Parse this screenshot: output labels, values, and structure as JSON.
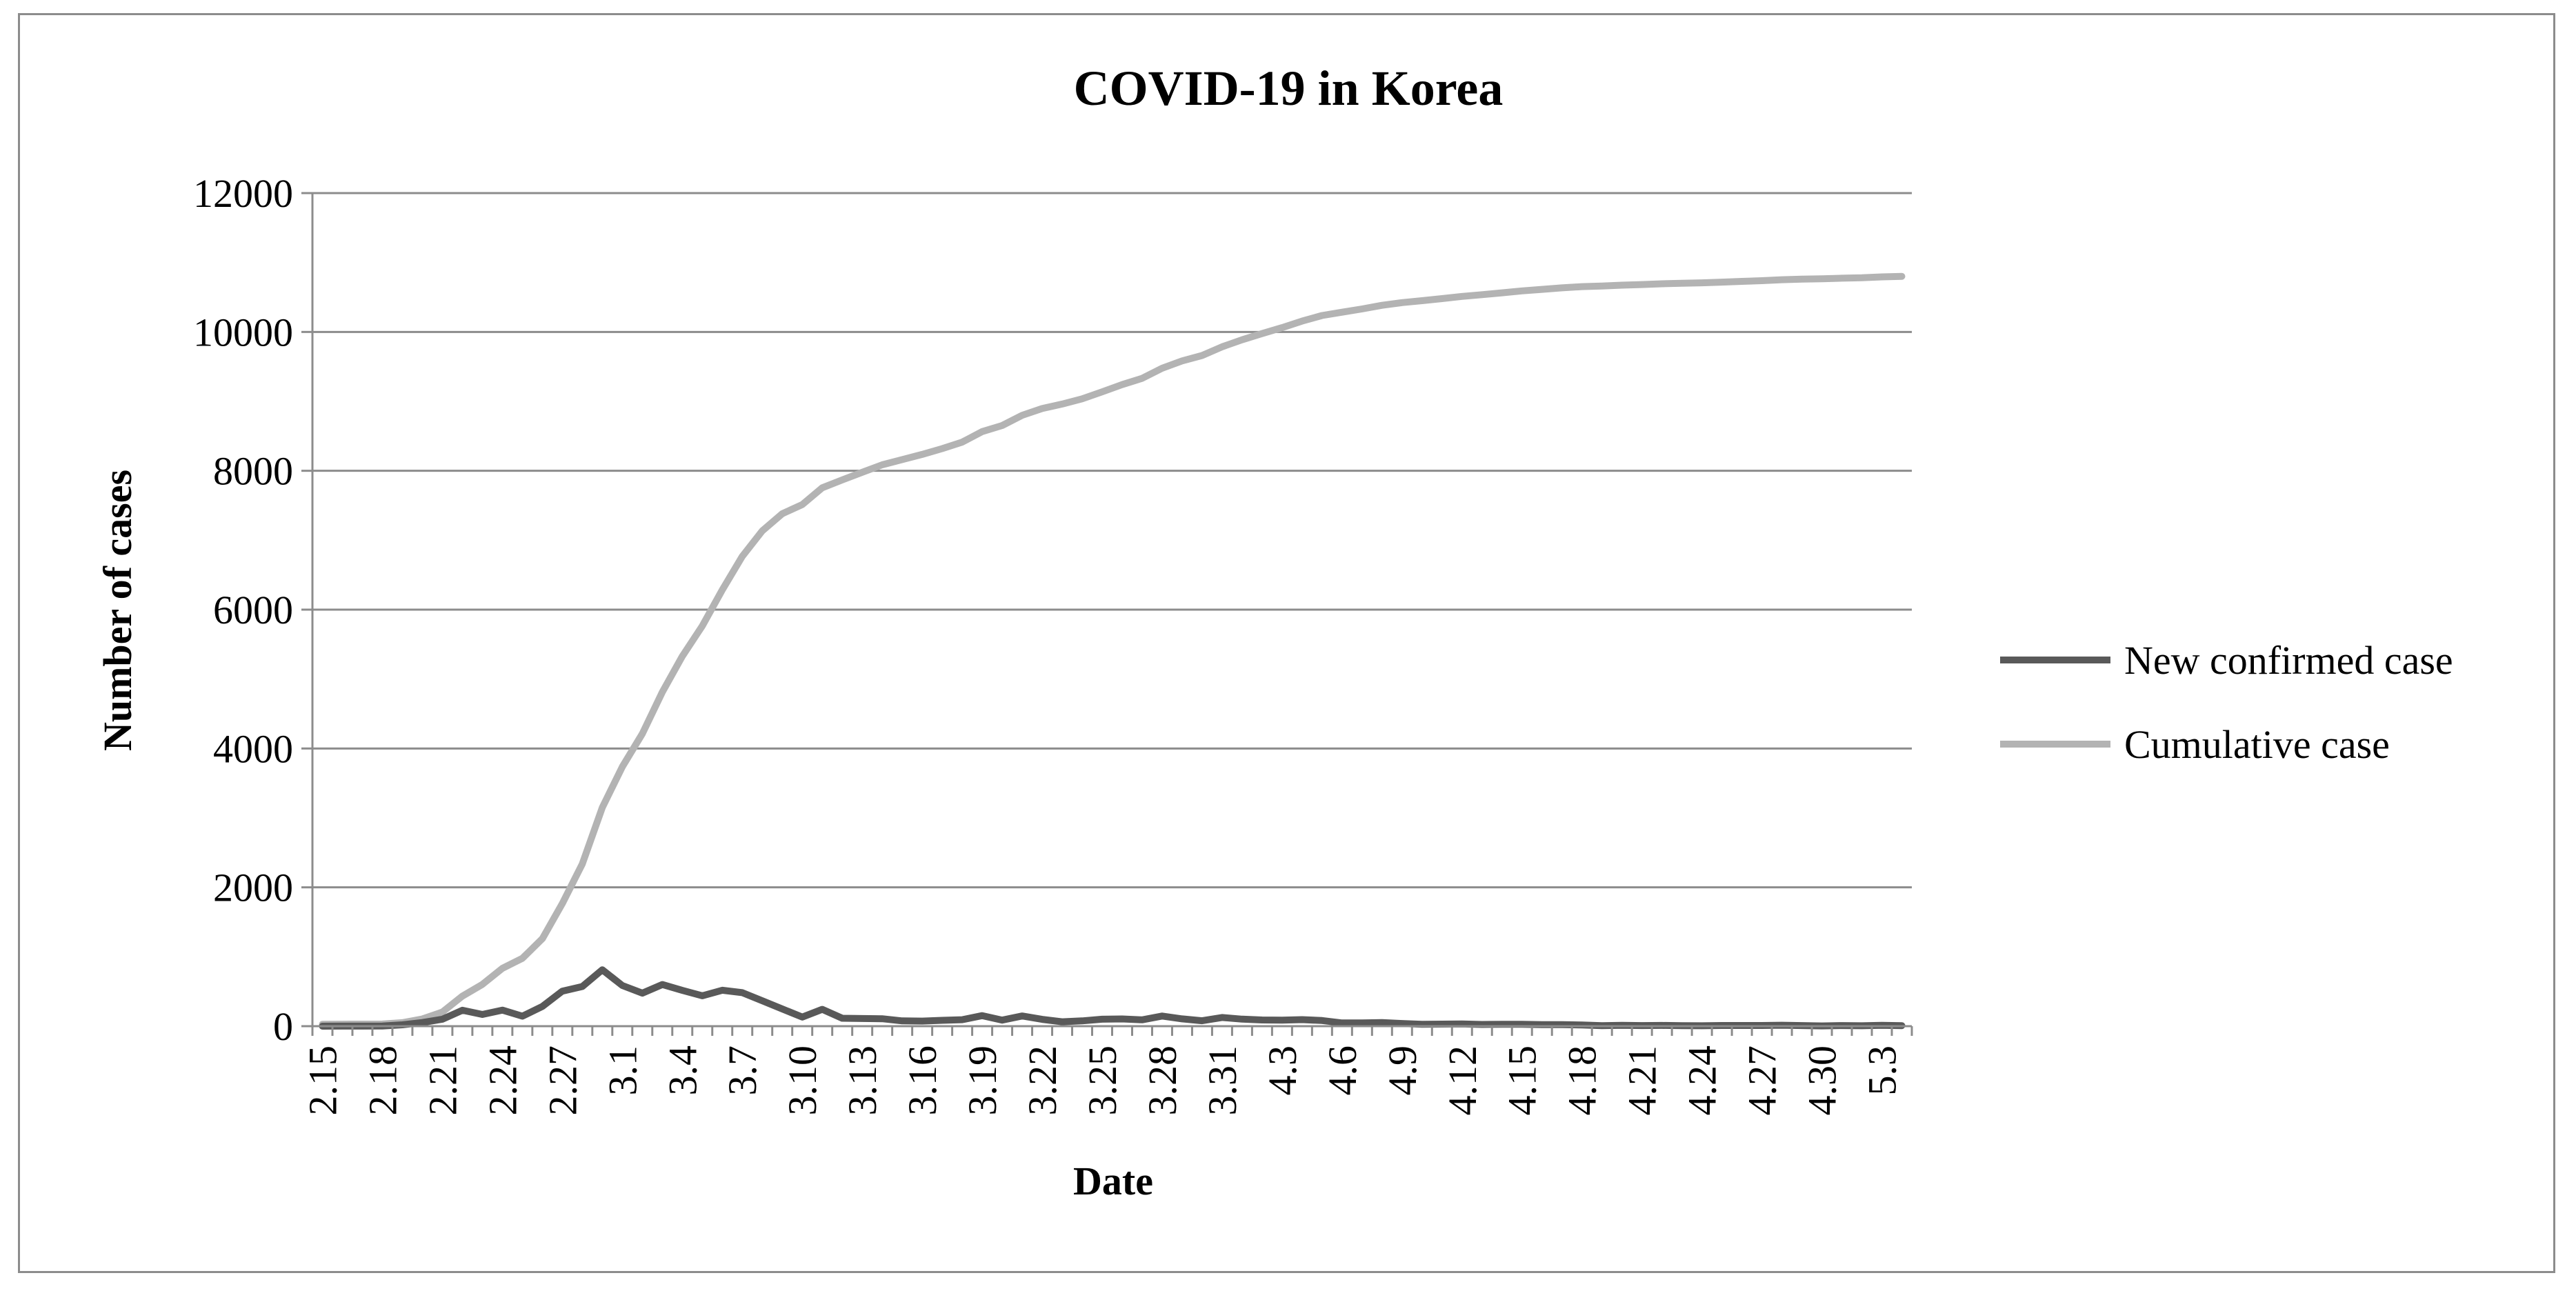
{
  "chart_data": {
    "type": "line",
    "title": "COVID-19 in Korea",
    "xlabel": "Date",
    "ylabel": "Number of cases",
    "ylim": [
      0,
      12000
    ],
    "yticks": [
      "0",
      "2000",
      "4000",
      "6000",
      "8000",
      "10000",
      "12000"
    ],
    "grid": true,
    "legend": "right",
    "x": [
      "2.15",
      "2.16",
      "2.17",
      "2.18",
      "2.19",
      "2.20",
      "2.21",
      "2.22",
      "2.23",
      "2.24",
      "2.25",
      "2.26",
      "2.27",
      "2.28",
      "2.29",
      "3.1",
      "3.2",
      "3.3",
      "3.4",
      "3.5",
      "3.6",
      "3.7",
      "3.8",
      "3.9",
      "3.10",
      "3.11",
      "3.12",
      "3.13",
      "3.14",
      "3.15",
      "3.16",
      "3.17",
      "3.18",
      "3.19",
      "3.20",
      "3.21",
      "3.22",
      "3.23",
      "3.24",
      "3.25",
      "3.26",
      "3.27",
      "3.28",
      "3.29",
      "3.30",
      "3.31",
      "4.1",
      "4.2",
      "4.3",
      "4.4",
      "4.5",
      "4.6",
      "4.7",
      "4.8",
      "4.9",
      "4.10",
      "4.11",
      "4.12",
      "4.13",
      "4.14",
      "4.15",
      "4.16",
      "4.17",
      "4.18",
      "4.19",
      "4.20",
      "4.21",
      "4.22",
      "4.23",
      "4.24",
      "4.25",
      "4.26",
      "4.27",
      "4.28",
      "4.29",
      "4.30",
      "5.1",
      "5.2",
      "5.3",
      "5.4"
    ],
    "xtick_labels": [
      "2.15",
      "2.18",
      "2.21",
      "2.24",
      "2.27",
      "3.1",
      "3.4",
      "3.7",
      "3.10",
      "3.13",
      "3.16",
      "3.19",
      "3.22",
      "3.25",
      "3.28",
      "3.31",
      "4.3",
      "4.6",
      "4.9",
      "4.12",
      "4.15",
      "4.18",
      "4.21",
      "4.24",
      "4.27",
      "4.30",
      "5.3"
    ],
    "series": [
      {
        "name": "New confirmed case",
        "color": "#595959",
        "values": [
          0,
          1,
          1,
          2,
          20,
          53,
          100,
          229,
          169,
          231,
          144,
          284,
          505,
          571,
          813,
          586,
          476,
          600,
          516,
          438,
          518,
          483,
          367,
          248,
          131,
          242,
          114,
          110,
          107,
          76,
          74,
          84,
          93,
          152,
          87,
          147,
          98,
          64,
          76,
          100,
          104,
          91,
          146,
          105,
          78,
          125,
          101,
          89,
          86,
          94,
          81,
          47,
          47,
          53,
          39,
          27,
          30,
          32,
          25,
          27,
          27,
          22,
          22,
          18,
          8,
          13,
          9,
          11,
          8,
          6,
          10,
          10,
          10,
          14,
          9,
          4,
          9,
          6,
          13,
          8
        ]
      },
      {
        "name": "Cumulative case",
        "color": "#b3b3b3",
        "values": [
          28,
          29,
          30,
          31,
          51,
          104,
          204,
          433,
          602,
          833,
          977,
          1261,
          1766,
          2337,
          3150,
          3736,
          4212,
          4812,
          5328,
          5766,
          6284,
          6767,
          7134,
          7382,
          7513,
          7755,
          7869,
          7979,
          8086,
          8162,
          8236,
          8320,
          8413,
          8565,
          8652,
          8799,
          8897,
          8961,
          9037,
          9137,
          9241,
          9332,
          9478,
          9583,
          9661,
          9786,
          9887,
          9976,
          10062,
          10156,
          10237,
          10284,
          10331,
          10384,
          10423,
          10450,
          10480,
          10512,
          10537,
          10564,
          10591,
          10613,
          10635,
          10653,
          10661,
          10674,
          10683,
          10694,
          10702,
          10708,
          10718,
          10728,
          10738,
          10752,
          10761,
          10765,
          10774,
          10780,
          10793,
          10801
        ]
      }
    ]
  }
}
